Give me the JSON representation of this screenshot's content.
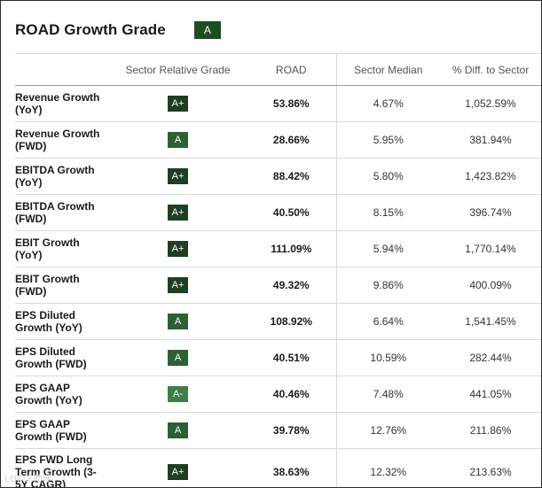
{
  "header": {
    "title": "ROAD Growth Grade",
    "overall_grade": "A"
  },
  "columns": {
    "metric": "",
    "sector_grade": "Sector Relative Grade",
    "road": "ROAD",
    "median": "Sector Median",
    "diff": "% Diff. to Sector"
  },
  "rows": [
    {
      "metric": "Revenue Growth (YoY)",
      "grade": "A+",
      "road": "53.86%",
      "median": "4.67%",
      "diff": "1,052.59%"
    },
    {
      "metric": "Revenue Growth (FWD)",
      "grade": "A",
      "road": "28.66%",
      "median": "5.95%",
      "diff": "381.94%"
    },
    {
      "metric": "EBITDA Growth (YoY)",
      "grade": "A+",
      "road": "88.42%",
      "median": "5.80%",
      "diff": "1,423.82%"
    },
    {
      "metric": "EBITDA Growth (FWD)",
      "grade": "A+",
      "road": "40.50%",
      "median": "8.15%",
      "diff": "396.74%"
    },
    {
      "metric": "EBIT Growth (YoY)",
      "grade": "A+",
      "road": "111.09%",
      "median": "5.94%",
      "diff": "1,770.14%"
    },
    {
      "metric": "EBIT Growth (FWD)",
      "grade": "A+",
      "road": "49.32%",
      "median": "9.86%",
      "diff": "400.09%"
    },
    {
      "metric": "EPS Diluted Growth (YoY)",
      "grade": "A",
      "road": "108.92%",
      "median": "6.64%",
      "diff": "1,541.45%"
    },
    {
      "metric": "EPS Diluted Growth (FWD)",
      "grade": "A",
      "road": "40.51%",
      "median": "10.59%",
      "diff": "282.44%"
    },
    {
      "metric": "EPS GAAP Growth (YoY)",
      "grade": "A-",
      "road": "40.46%",
      "median": "7.48%",
      "diff": "441.05%"
    },
    {
      "metric": "EPS GAAP Growth (FWD)",
      "grade": "A",
      "road": "39.78%",
      "median": "12.76%",
      "diff": "211.86%"
    },
    {
      "metric": "EPS FWD Long Term Growth (3-5Y CAGR)",
      "grade": "A+",
      "road": "38.63%",
      "median": "12.32%",
      "diff": "213.63%"
    }
  ],
  "watermark": "LOFO 助理",
  "colors": {
    "grade_dark": "#1f3f22",
    "grade_a": "#2c6135",
    "grade_a_minus": "#3f7e48"
  }
}
